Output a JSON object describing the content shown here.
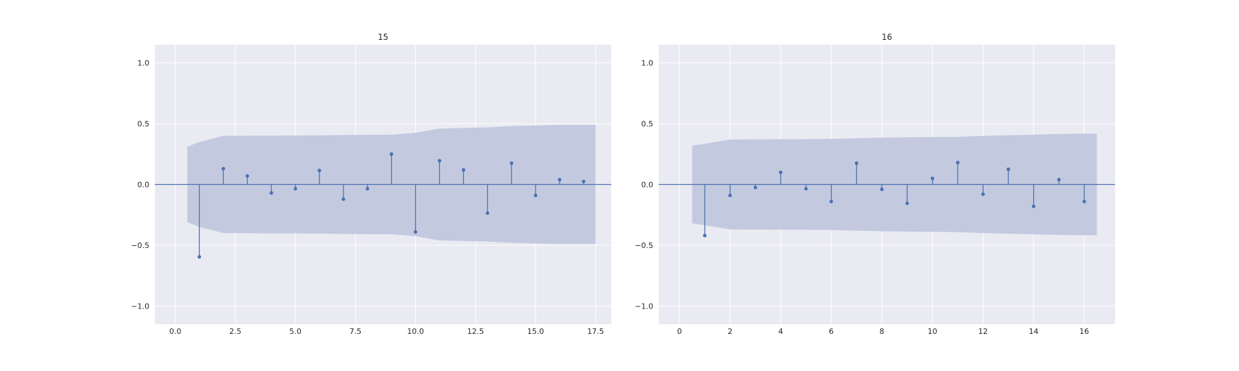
{
  "chart_data": [
    {
      "type": "stem",
      "title": "15",
      "xlabel": "",
      "ylabel": "",
      "xlim": [
        -0.85,
        18.15
      ],
      "ylim": [
        -1.15,
        1.15
      ],
      "xticks": [
        0,
        2.5,
        5,
        7.5,
        10,
        12.5,
        15,
        17.5
      ],
      "xtick_labels": [
        "0.0",
        "2.5",
        "5.0",
        "7.5",
        "10.0",
        "12.5",
        "15.0",
        "17.5"
      ],
      "yticks": [
        -1,
        -0.5,
        0,
        0.5,
        1
      ],
      "ytick_labels": [
        "−1.0",
        "−0.5",
        "0.0",
        "0.5",
        "1.0"
      ],
      "grid": true,
      "lags": [
        1,
        2,
        3,
        4,
        5,
        6,
        7,
        8,
        9,
        10,
        11,
        12,
        13,
        14,
        15,
        16,
        17
      ],
      "values": [
        -0.595,
        0.13,
        0.07,
        -0.07,
        -0.035,
        0.115,
        -0.12,
        -0.035,
        0.25,
        -0.39,
        0.195,
        0.12,
        -0.235,
        0.175,
        -0.09,
        0.04,
        0.025
      ],
      "confint_x": [
        0.5,
        1,
        2,
        3,
        4,
        5,
        6,
        7,
        8,
        9,
        10,
        11,
        12,
        13,
        14,
        15,
        16,
        17,
        17.5
      ],
      "confint_upper": [
        0.31,
        0.35,
        0.4,
        0.401,
        0.402,
        0.403,
        0.404,
        0.407,
        0.409,
        0.41,
        0.425,
        0.46,
        0.465,
        0.47,
        0.48,
        0.485,
        0.49,
        0.49,
        0.49
      ]
    },
    {
      "type": "stem",
      "title": "16",
      "xlabel": "",
      "ylabel": "",
      "xlim": [
        -0.82,
        17.22
      ],
      "ylim": [
        -1.15,
        1.15
      ],
      "xticks": [
        0,
        2,
        4,
        6,
        8,
        10,
        12,
        14,
        16
      ],
      "xtick_labels": [
        "0",
        "2",
        "4",
        "6",
        "8",
        "10",
        "12",
        "14",
        "16"
      ],
      "yticks": [
        -1,
        -0.5,
        0,
        0.5,
        1
      ],
      "ytick_labels": [
        "−1.0",
        "−0.5",
        "0.0",
        "0.5",
        "1.0"
      ],
      "grid": true,
      "lags": [
        1,
        2,
        3,
        4,
        5,
        6,
        7,
        8,
        9,
        10,
        11,
        12,
        13,
        14,
        15,
        16
      ],
      "values": [
        -0.42,
        -0.09,
        -0.025,
        0.1,
        -0.035,
        -0.14,
        0.175,
        -0.04,
        -0.155,
        0.05,
        0.18,
        -0.08,
        0.125,
        -0.18,
        0.04,
        -0.14
      ],
      "confint_x": [
        0.5,
        1,
        2,
        3,
        4,
        5,
        6,
        7,
        8,
        9,
        10,
        11,
        12,
        13,
        14,
        15,
        16,
        16.5
      ],
      "confint_upper": [
        0.32,
        0.335,
        0.37,
        0.371,
        0.372,
        0.373,
        0.375,
        0.38,
        0.385,
        0.388,
        0.39,
        0.392,
        0.4,
        0.405,
        0.41,
        0.415,
        0.418,
        0.418
      ]
    }
  ],
  "colors": {
    "axes_bg": "#eaeaf2",
    "grid": "#ffffff",
    "stem": "#4c72b0",
    "confint": "#c3cae0",
    "text": "#262626"
  }
}
